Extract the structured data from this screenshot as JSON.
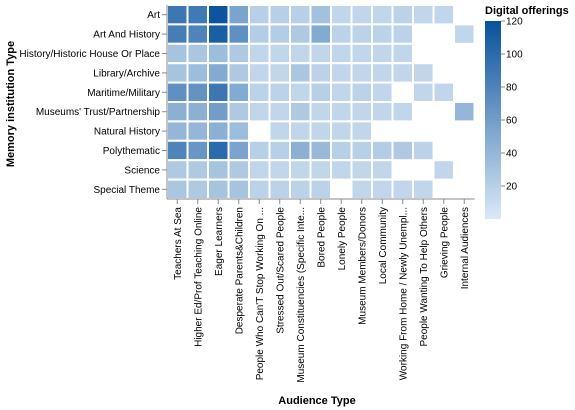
{
  "chart_data": {
    "type": "heatmap",
    "title": "",
    "xlabel": "Audience Type",
    "ylabel": "Memory institution Type",
    "legend_title": "Digital offerings",
    "legend_position": "right",
    "legend_ticks": [
      "120",
      "100",
      "80",
      "60",
      "40",
      "20"
    ],
    "color_range": [
      0,
      120
    ],
    "color_scale": {
      "low": "#dbe9f6",
      "high": "#08519c"
    },
    "x": [
      "Teachers At Sea",
      "Higher Ed/Prof Teaching Online",
      "Eager Learners",
      "Desperate Parents&Children",
      "People Who Can'T Stop Working On ...",
      "Stressed Out/Scared People",
      "Museum Constituencies (Specific Inte...",
      "Bored People",
      "Lonely People",
      "Museum Members/Donors",
      "Local Community",
      "Working From Home / Newly Unempl...",
      "People Wanting To Help Others",
      "Grieving People",
      "Internal Audiences"
    ],
    "y": [
      "Art",
      "Art And History",
      "History/Historic House Or Place",
      "Library/Archive",
      "Maritime/Military",
      "Museums' Trust/Partnership",
      "Natural History",
      "Polythematic",
      "Science",
      "Special Theme"
    ],
    "values": [
      [
        90,
        88,
        118,
        55,
        20,
        20,
        20,
        32,
        15,
        15,
        15,
        18,
        15,
        15,
        null
      ],
      [
        85,
        80,
        110,
        70,
        22,
        22,
        25,
        50,
        18,
        18,
        18,
        18,
        null,
        null,
        15
      ],
      [
        30,
        28,
        35,
        25,
        15,
        15,
        15,
        15,
        15,
        15,
        15,
        15,
        null,
        null,
        null
      ],
      [
        30,
        35,
        50,
        25,
        15,
        15,
        28,
        18,
        15,
        15,
        15,
        15,
        15,
        null,
        null
      ],
      [
        70,
        68,
        90,
        50,
        18,
        18,
        15,
        20,
        15,
        18,
        15,
        null,
        15,
        15,
        null
      ],
      [
        45,
        45,
        60,
        25,
        15,
        15,
        25,
        15,
        15,
        15,
        15,
        15,
        null,
        null,
        40
      ],
      [
        40,
        40,
        45,
        35,
        null,
        15,
        15,
        15,
        15,
        15,
        null,
        null,
        null,
        null,
        null
      ],
      [
        80,
        65,
        100,
        55,
        20,
        20,
        45,
        38,
        20,
        20,
        22,
        25,
        18,
        null,
        null
      ],
      [
        25,
        25,
        30,
        25,
        15,
        15,
        15,
        15,
        15,
        15,
        15,
        null,
        null,
        15,
        null
      ],
      [
        28,
        25,
        30,
        30,
        18,
        18,
        18,
        18,
        null,
        15,
        15,
        15,
        15,
        null,
        null
      ]
    ]
  }
}
